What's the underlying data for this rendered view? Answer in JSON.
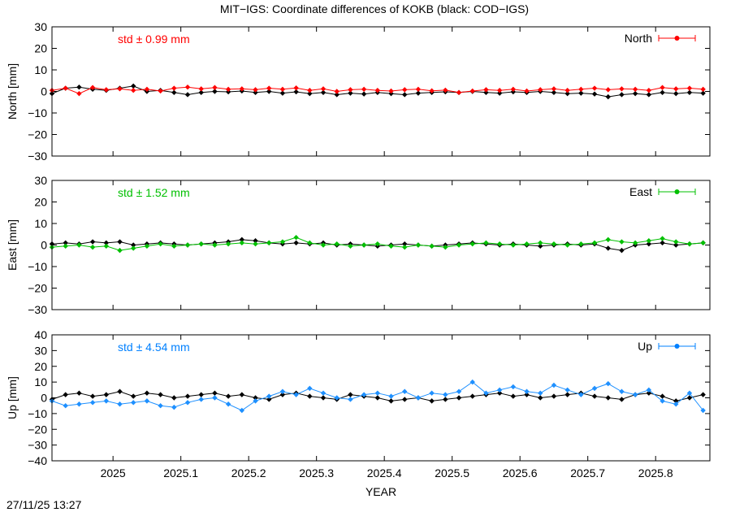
{
  "title": "MIT−IGS: Coordinate differences of KOKB (black: COD−IGS)",
  "timestamp": "27/11/25 13:27",
  "chart_data": [
    {
      "type": "line",
      "panel": "north",
      "ylabel": "North [mm]",
      "ylim": [
        -30,
        30
      ],
      "yticks": [
        -30,
        -20,
        -10,
        0,
        10,
        20,
        30
      ],
      "xlim": [
        2024.91,
        2025.88
      ],
      "legend_label": "North",
      "legend_position": "top-right",
      "std_text": "std ± 0.99 mm",
      "color": "#ff0000",
      "series": [
        {
          "name": "MIT−IGS",
          "color": "#ff0000",
          "x": [
            2024.91,
            2024.93,
            2024.95,
            2024.97,
            2024.99,
            2025.01,
            2025.03,
            2025.05,
            2025.07,
            2025.09,
            2025.11,
            2025.13,
            2025.15,
            2025.17,
            2025.19,
            2025.21,
            2025.23,
            2025.25,
            2025.27,
            2025.29,
            2025.31,
            2025.33,
            2025.35,
            2025.37,
            2025.39,
            2025.41,
            2025.43,
            2025.45,
            2025.47,
            2025.49,
            2025.51,
            2025.53,
            2025.55,
            2025.57,
            2025.59,
            2025.61,
            2025.63,
            2025.65,
            2025.67,
            2025.69,
            2025.71,
            2025.73,
            2025.75,
            2025.77,
            2025.79,
            2025.81,
            2025.83,
            2025.85,
            2025.87
          ],
          "y": [
            0.5,
            1.5,
            -1,
            1.8,
            0.8,
            1.2,
            0.5,
            1.0,
            0.2,
            1.5,
            2.0,
            1.2,
            1.8,
            1.0,
            1.2,
            0.8,
            1.5,
            1.0,
            1.6,
            0.5,
            1.2,
            0.0,
            0.8,
            1.0,
            0.5,
            0.2,
            0.8,
            1.0,
            0.3,
            0.6,
            -0.5,
            0.2,
            0.8,
            0.5,
            1.0,
            0.2,
            0.8,
            1.2,
            0.5,
            1.0,
            1.5,
            0.8,
            1.2,
            1.0,
            0.5,
            1.8,
            1.2,
            1.5,
            1.0
          ]
        },
        {
          "name": "COD−IGS",
          "color": "#000000",
          "x": [
            2024.91,
            2024.93,
            2024.95,
            2024.97,
            2024.99,
            2025.01,
            2025.03,
            2025.05,
            2025.07,
            2025.09,
            2025.11,
            2025.13,
            2025.15,
            2025.17,
            2025.19,
            2025.21,
            2025.23,
            2025.25,
            2025.27,
            2025.29,
            2025.31,
            2025.33,
            2025.35,
            2025.37,
            2025.39,
            2025.41,
            2025.43,
            2025.45,
            2025.47,
            2025.49,
            2025.51,
            2025.53,
            2025.55,
            2025.57,
            2025.59,
            2025.61,
            2025.63,
            2025.65,
            2025.67,
            2025.69,
            2025.71,
            2025.73,
            2025.75,
            2025.77,
            2025.79,
            2025.81,
            2025.83,
            2025.85,
            2025.87
          ],
          "y": [
            -1.0,
            1.5,
            2.0,
            1.0,
            0.5,
            1.5,
            2.5,
            0.0,
            0.5,
            -0.5,
            -1.5,
            -0.5,
            0.0,
            -0.2,
            0.2,
            -0.5,
            0.0,
            -0.8,
            -0.2,
            -1.0,
            -0.5,
            -1.5,
            -0.8,
            -1.2,
            -0.5,
            -1.0,
            -1.5,
            -0.8,
            -0.5,
            -0.2,
            -0.5,
            0.0,
            -0.5,
            -0.8,
            -0.2,
            -0.5,
            0.0,
            -0.5,
            -1.0,
            -0.8,
            -1.2,
            -2.5,
            -1.5,
            -1.0,
            -1.5,
            -0.5,
            -1.0,
            -0.5,
            -0.8
          ]
        }
      ]
    },
    {
      "type": "line",
      "panel": "east",
      "ylabel": "East [mm]",
      "ylim": [
        -30,
        30
      ],
      "yticks": [
        -30,
        -20,
        -10,
        0,
        10,
        20,
        30
      ],
      "xlim": [
        2024.91,
        2025.88
      ],
      "legend_label": "East",
      "legend_position": "top-right",
      "std_text": "std ± 1.52 mm",
      "color": "#00c000",
      "series": [
        {
          "name": "MIT−IGS",
          "color": "#00c000",
          "x": [
            2024.91,
            2024.93,
            2024.95,
            2024.97,
            2024.99,
            2025.01,
            2025.03,
            2025.05,
            2025.07,
            2025.09,
            2025.11,
            2025.13,
            2025.15,
            2025.17,
            2025.19,
            2025.21,
            2025.23,
            2025.25,
            2025.27,
            2025.29,
            2025.31,
            2025.33,
            2025.35,
            2025.37,
            2025.39,
            2025.41,
            2025.43,
            2025.45,
            2025.47,
            2025.49,
            2025.51,
            2025.53,
            2025.55,
            2025.57,
            2025.59,
            2025.61,
            2025.63,
            2025.65,
            2025.67,
            2025.69,
            2025.71,
            2025.73,
            2025.75,
            2025.77,
            2025.79,
            2025.81,
            2025.83,
            2025.85,
            2025.87
          ],
          "y": [
            -1.0,
            -0.5,
            0.0,
            -1.0,
            -0.5,
            -2.5,
            -1.5,
            -0.5,
            0.5,
            -0.5,
            0.0,
            0.5,
            0.0,
            0.5,
            1.0,
            0.5,
            1.0,
            1.5,
            3.5,
            1.0,
            0.0,
            0.5,
            -0.5,
            0.0,
            0.5,
            -0.5,
            -1.0,
            0.0,
            -0.5,
            -1.0,
            0.0,
            0.5,
            1.0,
            0.5,
            0.0,
            0.5,
            1.0,
            0.5,
            0.0,
            0.5,
            1.0,
            2.5,
            1.5,
            1.0,
            2.0,
            3.0,
            1.5,
            0.5,
            1.0
          ]
        },
        {
          "name": "COD−IGS",
          "color": "#000000",
          "x": [
            2024.91,
            2024.93,
            2024.95,
            2024.97,
            2024.99,
            2025.01,
            2025.03,
            2025.05,
            2025.07,
            2025.09,
            2025.11,
            2025.13,
            2025.15,
            2025.17,
            2025.19,
            2025.21,
            2025.23,
            2025.25,
            2025.27,
            2025.29,
            2025.31,
            2025.33,
            2025.35,
            2025.37,
            2025.39,
            2025.41,
            2025.43,
            2025.45,
            2025.47,
            2025.49,
            2025.51,
            2025.53,
            2025.55,
            2025.57,
            2025.59,
            2025.61,
            2025.63,
            2025.65,
            2025.67,
            2025.69,
            2025.71,
            2025.73,
            2025.75,
            2025.77,
            2025.79,
            2025.81,
            2025.83,
            2025.85,
            2025.87
          ],
          "y": [
            0.5,
            1.0,
            0.5,
            1.5,
            1.0,
            1.5,
            0.0,
            0.5,
            1.0,
            0.5,
            0.0,
            0.5,
            1.0,
            1.5,
            2.5,
            2.0,
            1.0,
            0.5,
            1.0,
            0.5,
            1.0,
            0.0,
            0.5,
            0.0,
            -0.5,
            0.0,
            0.5,
            0.0,
            -0.5,
            0.0,
            0.5,
            1.0,
            0.5,
            0.0,
            0.5,
            0.0,
            -0.5,
            0.0,
            0.5,
            0.0,
            0.5,
            -1.5,
            -2.5,
            0.0,
            0.5,
            1.0,
            0.0,
            0.5,
            1.0
          ]
        }
      ]
    },
    {
      "type": "line",
      "panel": "up",
      "ylabel": "Up [mm]",
      "ylim": [
        -40,
        40
      ],
      "yticks": [
        -40,
        -30,
        -20,
        -10,
        0,
        10,
        20,
        30,
        40
      ],
      "xlim": [
        2024.91,
        2025.88
      ],
      "xlabel": "YEAR",
      "xticks": [
        2025,
        2025.1,
        2025.2,
        2025.3,
        2025.4,
        2025.5,
        2025.6,
        2025.7,
        2025.8
      ],
      "legend_label": "Up",
      "legend_position": "top-right",
      "std_text": "std ± 4.54 mm",
      "color": "#0080ff",
      "series": [
        {
          "name": "MIT−IGS",
          "color": "#1e90ff",
          "x": [
            2024.91,
            2024.93,
            2024.95,
            2024.97,
            2024.99,
            2025.01,
            2025.03,
            2025.05,
            2025.07,
            2025.09,
            2025.11,
            2025.13,
            2025.15,
            2025.17,
            2025.19,
            2025.21,
            2025.23,
            2025.25,
            2025.27,
            2025.29,
            2025.31,
            2025.33,
            2025.35,
            2025.37,
            2025.39,
            2025.41,
            2025.43,
            2025.45,
            2025.47,
            2025.49,
            2025.51,
            2025.53,
            2025.55,
            2025.57,
            2025.59,
            2025.61,
            2025.63,
            2025.65,
            2025.67,
            2025.69,
            2025.71,
            2025.73,
            2025.75,
            2025.77,
            2025.79,
            2025.81,
            2025.83,
            2025.85,
            2025.87
          ],
          "y": [
            -2,
            -5,
            -4,
            -3,
            -2,
            -4,
            -3,
            -2,
            -5,
            -6,
            -3,
            -1,
            0,
            -4,
            -8,
            -2,
            1,
            4,
            2,
            6,
            3,
            0,
            -1,
            2,
            3,
            1,
            4,
            0,
            3,
            2,
            4,
            10,
            3,
            5,
            7,
            4,
            3,
            8,
            5,
            2,
            6,
            9,
            4,
            2,
            5,
            -2,
            -4,
            3,
            -8
          ]
        },
        {
          "name": "COD−IGS",
          "color": "#000000",
          "x": [
            2024.91,
            2024.93,
            2024.95,
            2024.97,
            2024.99,
            2025.01,
            2025.03,
            2025.05,
            2025.07,
            2025.09,
            2025.11,
            2025.13,
            2025.15,
            2025.17,
            2025.19,
            2025.21,
            2025.23,
            2025.25,
            2025.27,
            2025.29,
            2025.31,
            2025.33,
            2025.35,
            2025.37,
            2025.39,
            2025.41,
            2025.43,
            2025.45,
            2025.47,
            2025.49,
            2025.51,
            2025.53,
            2025.55,
            2025.57,
            2025.59,
            2025.61,
            2025.63,
            2025.65,
            2025.67,
            2025.69,
            2025.71,
            2025.73,
            2025.75,
            2025.77,
            2025.79,
            2025.81,
            2025.83,
            2025.85,
            2025.87
          ],
          "y": [
            -1,
            2,
            3,
            1,
            2,
            4,
            1,
            3,
            2,
            0,
            1,
            2,
            3,
            1,
            2,
            0,
            -1,
            2,
            3,
            1,
            0,
            -1,
            2,
            1,
            0,
            -2,
            -1,
            0,
            -2,
            -1,
            0,
            1,
            2,
            3,
            1,
            2,
            0,
            1,
            2,
            3,
            1,
            0,
            -1,
            2,
            3,
            1,
            -2,
            0,
            2
          ]
        }
      ]
    }
  ]
}
